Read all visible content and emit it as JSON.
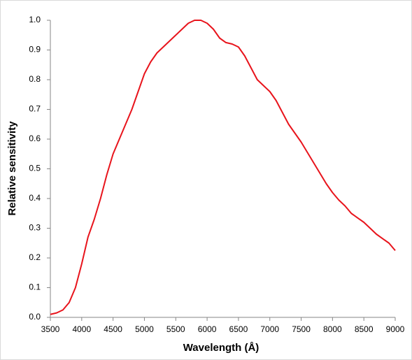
{
  "chart_data": {
    "type": "line",
    "xlabel": "Wavelength (Å)",
    "ylabel": "Relative sensitivity",
    "x": [
      3500,
      3600,
      3700,
      3800,
      3900,
      4000,
      4100,
      4200,
      4300,
      4400,
      4500,
      4600,
      4700,
      4800,
      4900,
      5000,
      5100,
      5200,
      5300,
      5400,
      5500,
      5600,
      5700,
      5800,
      5900,
      6000,
      6100,
      6200,
      6300,
      6400,
      6500,
      6600,
      6700,
      6800,
      6900,
      7000,
      7100,
      7200,
      7300,
      7400,
      7500,
      7600,
      7700,
      7800,
      7900,
      8000,
      8100,
      8200,
      8300,
      8400,
      8500,
      8600,
      8700,
      8800,
      8900,
      9000
    ],
    "series": [
      {
        "color": "#e8141c",
        "values": [
          0.01,
          0.015,
          0.025,
          0.05,
          0.1,
          0.18,
          0.27,
          0.33,
          0.4,
          0.48,
          0.55,
          0.6,
          0.65,
          0.7,
          0.76,
          0.82,
          0.86,
          0.89,
          0.91,
          0.93,
          0.95,
          0.97,
          0.99,
          1.0,
          1.0,
          0.99,
          0.97,
          0.94,
          0.925,
          0.92,
          0.91,
          0.88,
          0.84,
          0.8,
          0.78,
          0.76,
          0.73,
          0.69,
          0.65,
          0.62,
          0.59,
          0.555,
          0.52,
          0.485,
          0.45,
          0.42,
          0.395,
          0.375,
          0.35,
          0.335,
          0.32,
          0.3,
          0.28,
          0.265,
          0.25,
          0.225
        ]
      }
    ],
    "xlim": [
      3500,
      9000
    ],
    "xticks": [
      3500,
      4000,
      4500,
      5000,
      5500,
      6000,
      6500,
      7000,
      7500,
      8000,
      8500,
      9000
    ],
    "ylim": [
      0,
      1
    ],
    "yticks": [
      {
        "value": 0,
        "label": "0.0"
      },
      0.1,
      0.2,
      0.3,
      0.4,
      0.5,
      0.6,
      0.7,
      0.8,
      0.9,
      {
        "value": 1,
        "label": "1.0"
      }
    ],
    "grid": false
  }
}
